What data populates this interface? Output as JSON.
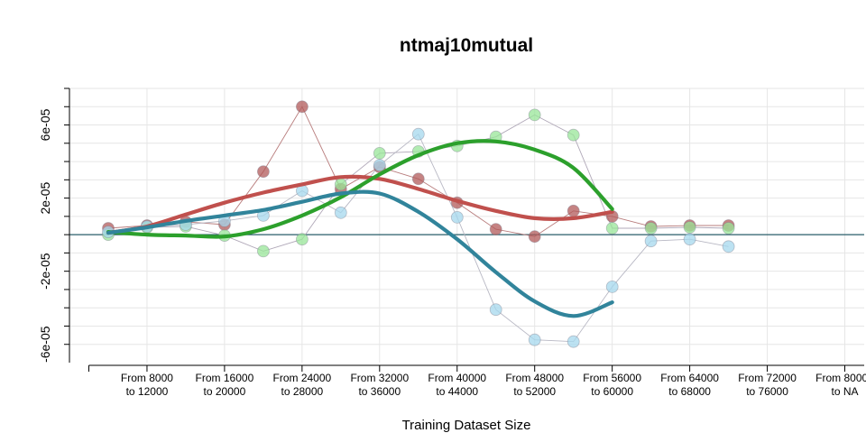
{
  "chart_data": {
    "type": "line",
    "title": "ntmaj10mutual",
    "xlabel": "Training Dataset Size",
    "ylabel": "",
    "x_tick_labels": [
      [
        "From 8000",
        "to 12000"
      ],
      [
        "From 16000",
        "to 20000"
      ],
      [
        "From 24000",
        "to 28000"
      ],
      [
        "From 32000",
        "to 36000"
      ],
      [
        "From 40000",
        "to 44000"
      ],
      [
        "From 48000",
        "to 52000"
      ],
      [
        "From 56000",
        "to 60000"
      ],
      [
        "From 64000",
        "to 68000"
      ],
      [
        "From 72000",
        "to 76000"
      ],
      [
        "From 80000",
        "to NA"
      ]
    ],
    "x_tick_positions": [
      10000,
      18000,
      26000,
      34000,
      42000,
      50000,
      58000,
      66000,
      74000,
      82000
    ],
    "xlim": [
      2000,
      84000
    ],
    "y_ticks": [
      -6e-05,
      -2e-05,
      2e-05,
      6e-05
    ],
    "y_tick_labels": [
      "-6e-05",
      "-2e-05",
      "2e-05",
      "6e-05"
    ],
    "ylim": [
      -7e-05,
      8e-05
    ],
    "reference_line_y": 0,
    "grid": true,
    "colors": {
      "red": "#c0504d",
      "green": "#2ca02c",
      "blue": "#31849b",
      "red_point": "#b15a5a",
      "green_point": "#98e698",
      "blue_point": "#a6d8ee",
      "ref_line": "#2a5f6a",
      "grid": "#e6e6e6"
    },
    "series": [
      {
        "color_key": "red",
        "points": [
          [
            6000,
            3.5e-06
          ],
          [
            10000,
            5e-06
          ],
          [
            14000,
            7e-06
          ],
          [
            18000,
            5.5e-06
          ],
          [
            22000,
            3.45e-05
          ],
          [
            26000,
            7e-05
          ],
          [
            30000,
            2.5e-05
          ],
          [
            34000,
            3.7e-05
          ],
          [
            38000,
            3.05e-05
          ],
          [
            42000,
            1.75e-05
          ],
          [
            46000,
            3e-06
          ],
          [
            50000,
            -1e-06
          ],
          [
            54000,
            1.3e-05
          ],
          [
            58000,
            1e-05
          ],
          [
            62000,
            4.5e-06
          ],
          [
            66000,
            5e-06
          ],
          [
            70000,
            5e-06
          ]
        ],
        "smooth": [
          [
            6000,
            1e-06
          ],
          [
            10000,
            4.5e-06
          ],
          [
            14000,
            1.1e-05
          ],
          [
            18000,
            1.75e-05
          ],
          [
            22000,
            2.3e-05
          ],
          [
            26000,
            2.75e-05
          ],
          [
            30000,
            3.15e-05
          ],
          [
            34000,
            3.05e-05
          ],
          [
            38000,
            2.5e-05
          ],
          [
            42000,
            1.85e-05
          ],
          [
            46000,
            1.3e-05
          ],
          [
            50000,
            9e-06
          ],
          [
            54000,
            9e-06
          ],
          [
            58000,
            1.25e-05
          ]
        ]
      },
      {
        "color_key": "green",
        "points": [
          [
            6000,
            0
          ],
          [
            10000,
            4e-06
          ],
          [
            14000,
            4.5e-06
          ],
          [
            18000,
            -5e-07
          ],
          [
            22000,
            -9e-06
          ],
          [
            26000,
            -2.5e-06
          ],
          [
            30000,
            2.75e-05
          ],
          [
            34000,
            4.45e-05
          ],
          [
            38000,
            4.55e-05
          ],
          [
            42000,
            4.85e-05
          ],
          [
            46000,
            5.35e-05
          ],
          [
            50000,
            6.55e-05
          ],
          [
            54000,
            5.45e-05
          ],
          [
            58000,
            3.5e-06
          ],
          [
            62000,
            3.5e-06
          ],
          [
            66000,
            4e-06
          ],
          [
            70000,
            3.5e-06
          ]
        ],
        "smooth": [
          [
            6000,
            1.5e-06
          ],
          [
            10000,
            0
          ],
          [
            14000,
            -5e-07
          ],
          [
            18000,
            -1e-06
          ],
          [
            22000,
            3e-06
          ],
          [
            26000,
            1.05e-05
          ],
          [
            30000,
            2.05e-05
          ],
          [
            34000,
            3.3e-05
          ],
          [
            38000,
            4.35e-05
          ],
          [
            42000,
            5e-05
          ],
          [
            46000,
            5.1e-05
          ],
          [
            50000,
            4.65e-05
          ],
          [
            54000,
            3.65e-05
          ],
          [
            58000,
            1.4e-05
          ]
        ]
      },
      {
        "color_key": "blue",
        "points": [
          [
            6000,
            1.5e-06
          ],
          [
            10000,
            4.5e-06
          ],
          [
            14000,
            5.5e-06
          ],
          [
            18000,
            7.5e-06
          ],
          [
            22000,
            1.05e-05
          ],
          [
            26000,
            2.4e-05
          ],
          [
            30000,
            1.2e-05
          ],
          [
            34000,
            3.8e-05
          ],
          [
            38000,
            5.5e-05
          ],
          [
            42000,
            9.5e-06
          ],
          [
            46000,
            -4.1e-05
          ],
          [
            50000,
            -5.75e-05
          ],
          [
            54000,
            -5.85e-05
          ],
          [
            58000,
            -2.85e-05
          ],
          [
            62000,
            -3.5e-06
          ],
          [
            66000,
            -2.5e-06
          ],
          [
            70000,
            -6.5e-06
          ]
        ],
        "smooth": [
          [
            6000,
            1e-06
          ],
          [
            10000,
            4e-06
          ],
          [
            14000,
            7.5e-06
          ],
          [
            18000,
            1.05e-05
          ],
          [
            22000,
            1.35e-05
          ],
          [
            26000,
            1.8e-05
          ],
          [
            30000,
            2.25e-05
          ],
          [
            34000,
            2.25e-05
          ],
          [
            38000,
            1.25e-05
          ],
          [
            42000,
            -2.5e-06
          ],
          [
            46000,
            -2.05e-05
          ],
          [
            50000,
            -3.65e-05
          ],
          [
            54000,
            -4.45e-05
          ],
          [
            58000,
            -3.7e-05
          ]
        ]
      }
    ]
  }
}
